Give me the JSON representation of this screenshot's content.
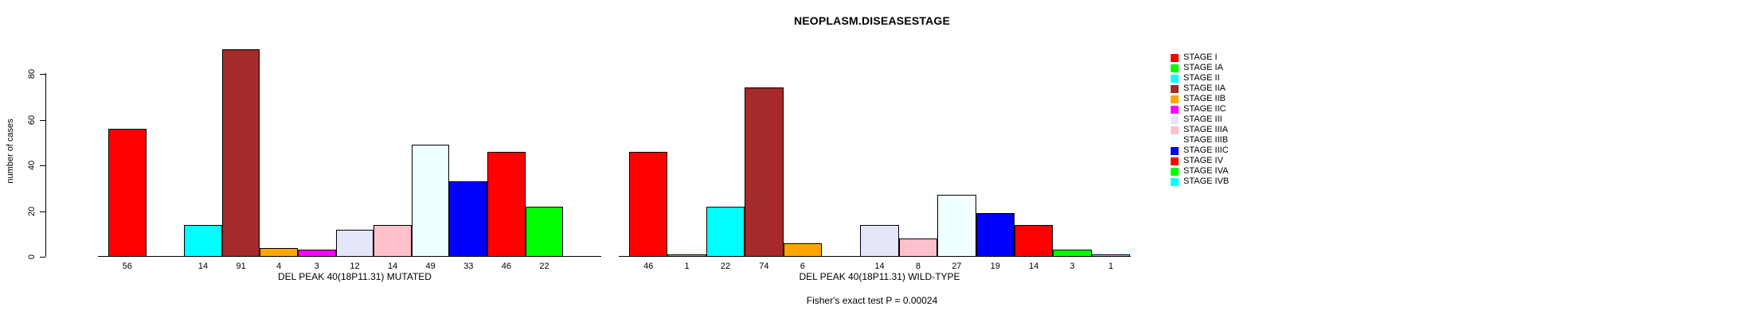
{
  "figure": {
    "title": "NEOPLASM.DISEASESTAGE",
    "annotation": "Fisher's exact test P = 0.00024"
  },
  "chart_data": {
    "type": "bar",
    "title": "NEOPLASM.DISEASESTAGE",
    "ylabel": "number of cases",
    "xlabel": "",
    "ylim": [
      0,
      95
    ],
    "yticks": [
      0,
      20,
      40,
      60,
      80
    ],
    "grid": false,
    "legend_position": "right",
    "bar_border_color": "#000000",
    "categories": [
      "STAGE I",
      "STAGE IA",
      "STAGE II",
      "STAGE IIA",
      "STAGE IIB",
      "STAGE IIC",
      "STAGE III",
      "STAGE IIIA",
      "STAGE IIIB",
      "STAGE IIIC",
      "STAGE IV",
      "STAGE IVA",
      "STAGE IVB"
    ],
    "colors": [
      "#FF0000",
      "#00FF00",
      "#00FFFF",
      "#A52A2A",
      "#FFA500",
      "#FF00FF",
      "#E6E6FA",
      "#FFC0CB",
      "#F0FFFF",
      "#0000FF",
      "#FF0000",
      "#00FF00",
      "#00FFFF"
    ],
    "groups": [
      {
        "label": "DEL PEAK 40(18P11.31) MUTATED",
        "values": [
          56,
          0,
          14,
          91,
          4,
          3,
          12,
          14,
          49,
          33,
          46,
          22,
          0
        ]
      },
      {
        "label": "DEL PEAK 40(18P11.31) WILD-TYPE",
        "values": [
          46,
          1,
          22,
          74,
          6,
          0,
          14,
          8,
          27,
          19,
          14,
          3,
          1
        ]
      }
    ],
    "annotation": "Fisher's exact test P = 0.00024"
  }
}
